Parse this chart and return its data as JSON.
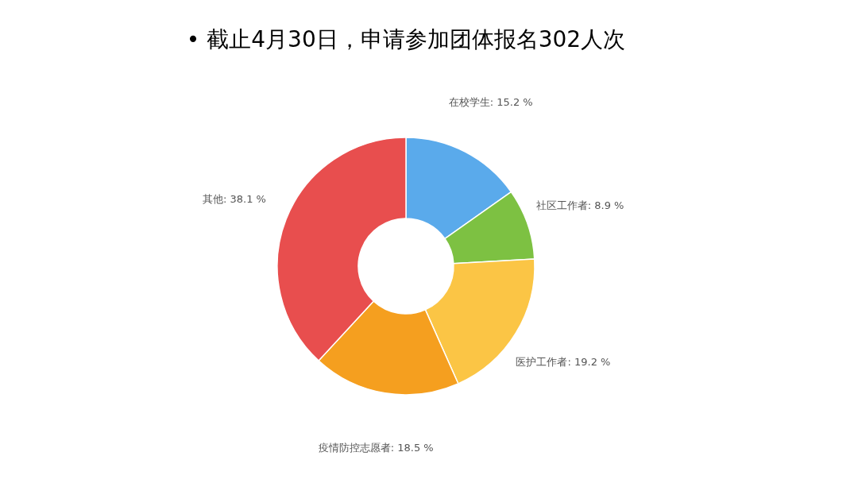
{
  "chart_data": {
    "type": "donut",
    "title": "• 截止4月30日，申请参加团体报名302人次",
    "categories": [
      "在校学生",
      "社区工作者",
      "医护工作者",
      "疫情防控志愿者",
      "其他"
    ],
    "values": [
      15.2,
      8.9,
      19.2,
      18.5,
      38.1
    ],
    "colors": [
      "#5aaaeb",
      "#7dc142",
      "#fbc545",
      "#f59f1f",
      "#e84e4e"
    ],
    "value_labels": [
      "15.2 %",
      "8.9 %",
      "19.2 %",
      "18.5 %",
      "38.1 %"
    ]
  }
}
